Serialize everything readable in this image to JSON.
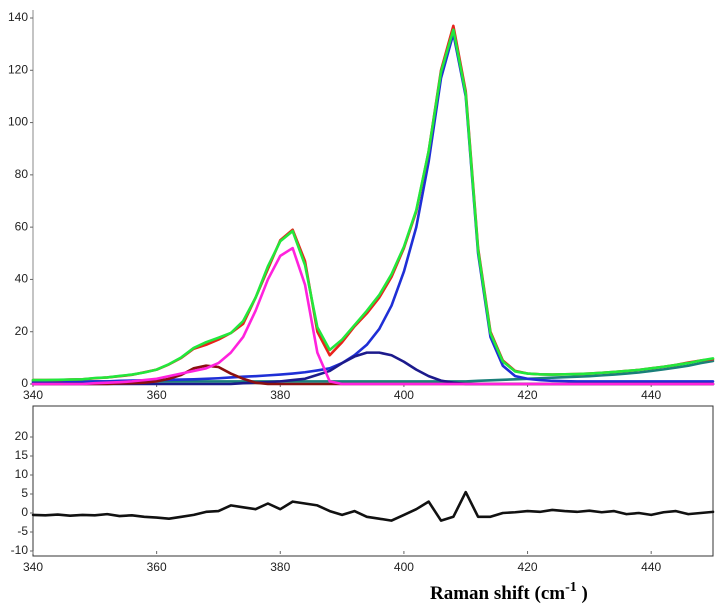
{
  "chart_data": [
    {
      "type": "line",
      "x": [
        340,
        342,
        344,
        346,
        348,
        350,
        352,
        354,
        356,
        358,
        360,
        362,
        364,
        366,
        368,
        370,
        372,
        374,
        376,
        378,
        380,
        382,
        384,
        386,
        388,
        390,
        392,
        394,
        396,
        398,
        400,
        402,
        404,
        406,
        408,
        410,
        412,
        414,
        416,
        418,
        420,
        422,
        424,
        426,
        428,
        430,
        432,
        434,
        436,
        438,
        440,
        442,
        444,
        446,
        448,
        450
      ],
      "xlim": [
        340,
        450
      ],
      "xticks": [
        340,
        360,
        380,
        400,
        420,
        440
      ],
      "ylim": [
        0,
        140
      ],
      "yticks": [
        0,
        20,
        40,
        60,
        80,
        100,
        120,
        140
      ],
      "series": [
        {
          "color": "#1a7f7a",
          "values": [
            1,
            1,
            1,
            1,
            1,
            1,
            1,
            1,
            1,
            1,
            1,
            1,
            1,
            1,
            1,
            1,
            1,
            1,
            1,
            1,
            1,
            1,
            1,
            1,
            1,
            1,
            1,
            1,
            1,
            1,
            1,
            1,
            1,
            1,
            1,
            1,
            1.2,
            1.4,
            1.6,
            1.8,
            2,
            2.2,
            2.4,
            2.6,
            2.8,
            3,
            3.3,
            3.6,
            4,
            4.4,
            5,
            5.6,
            6.3,
            7,
            8,
            8.8
          ]
        },
        {
          "color": "#1f2fd6",
          "values": [
            0.5,
            0.5,
            0.6,
            0.7,
            0.8,
            1,
            1,
            1.2,
            1.3,
            1.4,
            1.5,
            1.6,
            1.7,
            1.8,
            2,
            2.2,
            2.5,
            2.8,
            3,
            3.3,
            3.6,
            4,
            4.5,
            5.2,
            6,
            8,
            11,
            15,
            21,
            30,
            43,
            60,
            85,
            117,
            134,
            110,
            50,
            18,
            7,
            3,
            2,
            1.5,
            1.2,
            1.1,
            1,
            1,
            1,
            1,
            1,
            1,
            1,
            1,
            1,
            1,
            1,
            1
          ]
        },
        {
          "color": "#1c1a8c",
          "values": [
            0,
            0,
            0,
            0,
            0,
            0,
            0,
            0,
            0,
            0,
            0,
            0,
            0,
            0,
            0,
            0,
            0,
            0.3,
            0.5,
            0.7,
            1,
            1.5,
            2,
            3.5,
            5,
            8,
            10.5,
            12,
            12,
            11,
            8.5,
            5.5,
            3,
            1.3,
            0.5,
            0,
            0,
            0,
            0,
            0,
            0,
            0,
            0,
            0,
            0,
            0,
            0,
            0,
            0,
            0,
            0,
            0,
            0,
            0,
            0,
            0
          ]
        },
        {
          "color": "#8b1010",
          "values": [
            0,
            0,
            0,
            0,
            0,
            0,
            0,
            0.2,
            0.3,
            0.5,
            1,
            2,
            3.5,
            6,
            7,
            6.5,
            4,
            2,
            0.5,
            0,
            0,
            0,
            0,
            0,
            0,
            0,
            0,
            0,
            0,
            0,
            0,
            0,
            0,
            0,
            0,
            0,
            0,
            0,
            0,
            0,
            0,
            0,
            0,
            0,
            0,
            0,
            0,
            0,
            0,
            0,
            0,
            0,
            0,
            0,
            0,
            0
          ]
        },
        {
          "color": "#ff22dd",
          "values": [
            0,
            0,
            0,
            0,
            0,
            0.3,
            0.5,
            0.7,
            1,
            1.5,
            2,
            3,
            4,
            5,
            6,
            8,
            12,
            18,
            28,
            40,
            49,
            52,
            38,
            12,
            1,
            0,
            0,
            0,
            0,
            0,
            0,
            0,
            0,
            0,
            0,
            0,
            0,
            0,
            0,
            0,
            0,
            0,
            0,
            0,
            0,
            0,
            0,
            0,
            0,
            0,
            0,
            0,
            0,
            0,
            0,
            0
          ]
        },
        {
          "color": "#e8231c",
          "values": [
            1.5,
            1.5,
            1.5,
            1.7,
            1.8,
            2.2,
            2.5,
            3,
            3.5,
            4.5,
            5.5,
            7.5,
            10,
            13.5,
            15,
            17,
            19.5,
            23,
            33,
            44,
            55,
            59,
            47,
            20,
            11,
            16,
            22,
            27,
            33,
            41,
            52,
            66,
            89,
            120,
            137,
            112,
            52,
            20,
            9,
            5,
            4,
            3.7,
            3.6,
            3.7,
            3.8,
            4,
            4.3,
            4.6,
            5,
            5.4,
            6,
            6.6,
            7.3,
            8.2,
            9,
            9.5
          ]
        },
        {
          "color": "#22e83c",
          "values": [
            1.5,
            1.5,
            1.6,
            1.7,
            1.8,
            2.3,
            2.5,
            3.1,
            3.6,
            4.4,
            5.5,
            7.6,
            10.2,
            13.8,
            16,
            17.7,
            19.5,
            24.1,
            33,
            45,
            54.6,
            58.5,
            45.5,
            21.7,
            13,
            17,
            22.5,
            28,
            34,
            42,
            52.5,
            66.5,
            89,
            119.3,
            135.5,
            111,
            51.2,
            19.4,
            8.6,
            4.8,
            4,
            3.7,
            3.6,
            3.7,
            3.8,
            4,
            4.3,
            4.6,
            5,
            5.4,
            6,
            6.6,
            7.3,
            8,
            9,
            9.8
          ]
        }
      ]
    },
    {
      "type": "line",
      "x": [
        340,
        342,
        344,
        346,
        348,
        350,
        352,
        354,
        356,
        358,
        360,
        362,
        364,
        366,
        368,
        370,
        372,
        374,
        376,
        378,
        380,
        382,
        384,
        386,
        388,
        390,
        392,
        394,
        396,
        398,
        400,
        402,
        404,
        406,
        408,
        410,
        412,
        414,
        416,
        418,
        420,
        422,
        424,
        426,
        428,
        430,
        432,
        434,
        436,
        438,
        440,
        442,
        444,
        446,
        448,
        450
      ],
      "xlim": [
        340,
        450
      ],
      "xticks": [
        340,
        360,
        380,
        400,
        420,
        440
      ],
      "ylim": [
        -10,
        20
      ],
      "yticks": [
        -10,
        -5,
        0,
        5,
        10,
        15,
        20
      ],
      "xlabel": "Raman shift (cm",
      "xlabel_superscript": "-1",
      "xlabel_suffix": " )",
      "series": [
        {
          "color": "#111111",
          "values": [
            -0.5,
            -0.6,
            -0.4,
            -0.7,
            -0.5,
            -0.6,
            -0.3,
            -0.8,
            -0.6,
            -1,
            -1.2,
            -1.5,
            -1,
            -0.5,
            0.3,
            0.5,
            2,
            1.5,
            1,
            2.5,
            1,
            3,
            2.5,
            2,
            0.5,
            -0.5,
            0.5,
            -1,
            -1.5,
            -2,
            -0.5,
            1,
            3,
            -2,
            -1,
            5.5,
            -1,
            -1,
            0,
            0.2,
            0.5,
            0.3,
            0.8,
            0.5,
            0.3,
            0.6,
            0.2,
            0.5,
            -0.3,
            0,
            -0.5,
            0.2,
            0.5,
            -0.3,
            0,
            0.3
          ]
        }
      ]
    }
  ]
}
